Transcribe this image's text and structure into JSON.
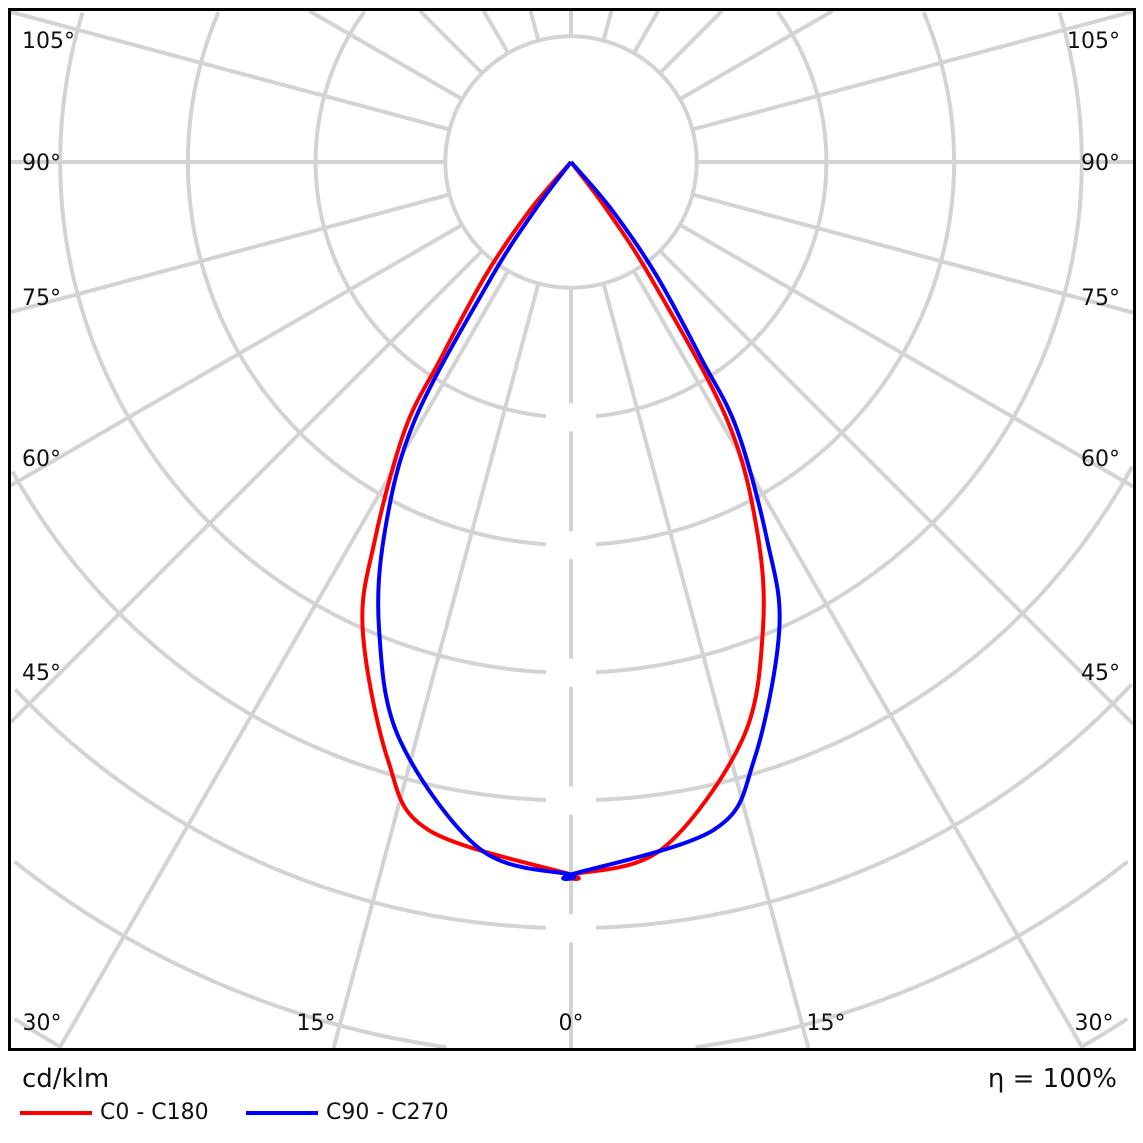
{
  "chart_data": {
    "type": "polar",
    "unit_label": "cd/klm",
    "efficiency_label": "η = 100%",
    "angle_labels_bottom": [
      "30°",
      "15°",
      "0°",
      "15°",
      "30°"
    ],
    "angle_labels_sides": [
      "45°",
      "60°",
      "75°",
      "90°",
      "105°"
    ],
    "angle_grid_step_deg": 15,
    "ring_count": 7,
    "grid": true,
    "legend_placement": "bottom-left",
    "series": [
      {
        "name": "C0 - C180",
        "color": "#ff0000",
        "left": {
          "angles": [
            0,
            12,
            17,
            24,
            27.4,
            31.8,
            33.5,
            37,
            40.5,
            45
          ],
          "values": [
            5.58,
            5.35,
            4.9,
            4.01,
            3.34,
            2.47,
            1.86,
            1.11,
            0.49,
            0
          ]
        },
        "right": {
          "angles": [
            0,
            7.5,
            16.5,
            22.3,
            26.8,
            31.2,
            34.5,
            36.9,
            42
          ],
          "values": [
            5.58,
            5.43,
            4.72,
            3.96,
            3.23,
            2.36,
            1.12,
            0.47,
            0
          ]
        }
      },
      {
        "name": "C90 - C270",
        "color": "#0000ff",
        "left": {
          "angles": [
            0,
            7.5,
            16.5,
            22.3,
            26.8,
            31.2,
            34.5,
            36.9,
            42
          ],
          "values": [
            5.58,
            5.43,
            4.72,
            3.96,
            3.23,
            2.36,
            1.12,
            0.47,
            0
          ]
        },
        "right": {
          "angles": [
            0,
            12,
            17,
            24,
            27.4,
            31.8,
            33.5,
            37,
            40.5,
            45
          ],
          "values": [
            5.58,
            5.35,
            4.9,
            4.01,
            3.34,
            2.47,
            1.86,
            1.11,
            0.49,
            0
          ]
        }
      }
    ]
  }
}
